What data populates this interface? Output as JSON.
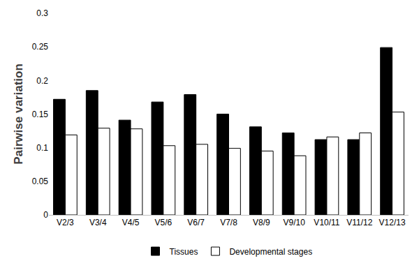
{
  "chart_data": {
    "type": "bar",
    "y_label": "Pairwise variation",
    "categories": [
      "V2/3",
      "V3/4",
      "V4/5",
      "V5/6",
      "V6/7",
      "V7/8",
      "V8/9",
      "V9/10",
      "V10/11",
      "V11/12",
      "V12/13"
    ],
    "series": [
      {
        "name": "Tissues",
        "color": "#000000",
        "values": [
          0.172,
          0.185,
          0.141,
          0.168,
          0.179,
          0.15,
          0.131,
          0.122,
          0.112,
          0.112,
          0.249
        ]
      },
      {
        "name": "Developmental stages",
        "color": "#ffffff",
        "values": [
          0.119,
          0.129,
          0.128,
          0.103,
          0.105,
          0.099,
          0.095,
          0.088,
          0.116,
          0.122,
          0.153
        ]
      }
    ],
    "ylim": [
      0,
      0.3
    ],
    "yticks": [
      0,
      0.05,
      0.1,
      0.15,
      0.2,
      0.25,
      0.3
    ],
    "grid": false,
    "legend": "bottom"
  }
}
